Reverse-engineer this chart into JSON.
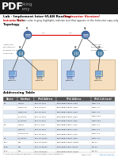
{
  "bg_color": "#ffffff",
  "header_bg": "#1a1a1a",
  "pdf_text": "PDF",
  "brand_line1": "rking",
  "brand_line2": "rmy",
  "title_black": "Lab - Implement Inter-VLAN Routing",
  "title_red": "(Instructor Version)",
  "note_bold": "Instructor Note:",
  "note_rest": "Red font color in gray highlights indicate text that appears in the Instructor copy only.",
  "topology_label": "Topology",
  "addressing_label": "Addressing Table",
  "note_color": "#cc0000",
  "table_header_bg": "#555555",
  "table_header_color": "#ffffff",
  "table_row_colors": [
    "#dce6f1",
    "#ffffff"
  ],
  "table_cols": [
    "Device",
    "Interface",
    "IPv4 Address",
    "IPv6 Address",
    "IPv6 Link Local"
  ],
  "table_rows": [
    [
      "R1",
      "G0/0/1",
      "10.1.10.1/24",
      "2001:db8:acad:a::1/64",
      "FE80::1:1"
    ],
    [
      "",
      "G0/0/1.10",
      "10.1.10.1/24",
      "2001:db8:acad:a::1/64",
      "FE80::1:1"
    ],
    [
      "",
      "G0/0/1.20",
      "10.1.20.1/24",
      "2001:db8:acad:b::1/64",
      "FE80::1:1"
    ],
    [
      "",
      "LA_WA03",
      "10.1.30.1/24",
      "2001:db8:acad:b::1/64",
      "FE80::20:1"
    ],
    [
      "",
      "LA_WA03",
      "10.1.40.1/24",
      "2001:db8:acad:b::1/64",
      "FE80::20:1"
    ],
    [
      "R2",
      "G0/0/1",
      "10.1.1.1/24",
      "2001:db8:acad:c::1/64",
      "FE80::1:1"
    ],
    [
      "",
      "GIGA10",
      "10.1.10.1/24",
      "2001:db8:acad:c::1/64",
      "FE80::1:1"
    ],
    [
      "",
      "GIGA10 10",
      "10.1.20.1/24",
      "2001:db8:acad:c::1/64",
      "FE80::1:1"
    ],
    [
      "S1",
      "LA_WA03",
      "10.1.20.10/24",
      "2001:db8:acad:d::1/64",
      "FE80::1:1"
    ],
    [
      "PC-A",
      "NIC",
      "10.1.20.30/24",
      "2001:db8:acad:e::30/64",
      "EUI-64"
    ],
    [
      "PC-B",
      "NIC",
      "10.1.40.30/24",
      "2001:db8:acad:f::30/64",
      "EUI-64"
    ],
    [
      "PC-C",
      "NIC",
      "10.1.78.30/24",
      "2001:db8:acad:g::30/64",
      "EUI-64"
    ]
  ],
  "footer_text": "© 2017 Cisco and/or its affiliates. All rights reserved. Cisco Confidential",
  "footer_page": "Page 1 of 6",
  "footer_link": "www.netacad.com",
  "blue_box_color": "#ccd9ea",
  "orange_box_color": "#f5dfc0",
  "blue_box_edge": "#9aafc5",
  "orange_box_edge": "#d4a96a",
  "router_color": "#4a6fa5",
  "switch_color": "#4a7fa5",
  "pc_body_color": "#b8cee8",
  "pc_screen_color": "#7aaad8",
  "line_color": "#444444",
  "red_line_color": "#dd0000"
}
